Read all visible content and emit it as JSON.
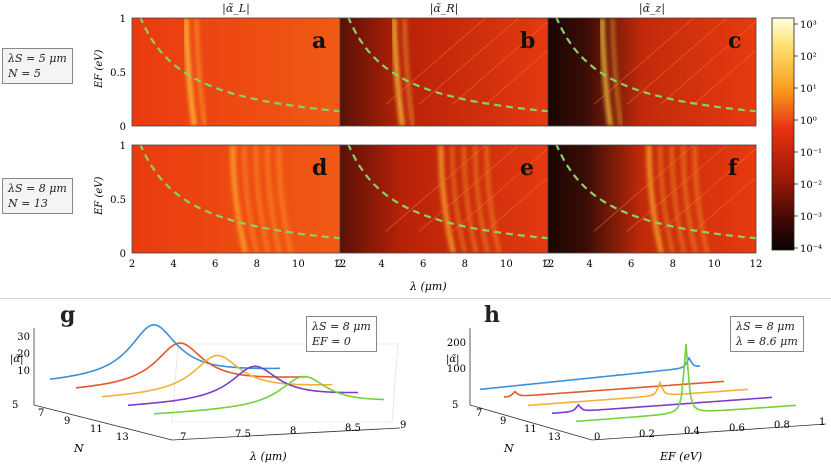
{
  "headers": [
    "|α̃_L|",
    "|α̃_R|",
    "|α̃_z|"
  ],
  "panel_letters": [
    "a",
    "b",
    "c",
    "d",
    "e",
    "f",
    "g",
    "h"
  ],
  "row_params": [
    {
      "line1": "λS = 5 μm",
      "line2": "N = 5"
    },
    {
      "line1": "λS = 8 μm",
      "line2": "N = 13"
    }
  ],
  "g_params": {
    "line1": "λS = 8 μm",
    "line2": "EF = 0"
  },
  "h_params": {
    "line1": "λS = 8 μm",
    "line2": "λ = 8.6 μm"
  },
  "colors": {
    "dashed": "#8ad06a",
    "series": [
      "#3d8fd9",
      "#e4572e",
      "#f2b134",
      "#7b3cc9",
      "#74d13a"
    ]
  },
  "chart_data": [
    {
      "type": "heatmap",
      "title": "",
      "xlabel": "λ (μm)",
      "ylabel": "EF (eV)",
      "x_ticks": [
        "2",
        "4",
        "6",
        "8",
        "10",
        "12"
      ],
      "y_ticks": [
        "0",
        "0.5",
        "1"
      ],
      "xlim": [
        2,
        12
      ],
      "ylim": [
        0,
        1
      ],
      "panels": [
        {
          "letter": "a",
          "quantity": "|α̃_L|",
          "lambda_S": 5,
          "N": 5
        },
        {
          "letter": "b",
          "quantity": "|α̃_R|",
          "lambda_S": 5,
          "N": 5
        },
        {
          "letter": "c",
          "quantity": "|α̃_z|",
          "lambda_S": 5,
          "N": 5
        },
        {
          "letter": "d",
          "quantity": "|α̃_L|",
          "lambda_S": 8,
          "N": 13
        },
        {
          "letter": "e",
          "quantity": "|α̃_R|",
          "lambda_S": 8,
          "N": 13
        },
        {
          "letter": "f",
          "quantity": "|α̃_z|",
          "lambda_S": 8,
          "N": 13
        }
      ],
      "colorbar": {
        "scale": "log",
        "ticks": [
          "10³",
          "10²",
          "10¹",
          "10⁰",
          "10⁻¹",
          "10⁻²",
          "10⁻³",
          "10⁻⁴"
        ]
      }
    },
    {
      "type": "line",
      "title": "",
      "xlabel": "λ (μm)",
      "ylabel": "|α̃|",
      "zlabel": "N",
      "x_ticks": [
        "7",
        "7.5",
        "8",
        "8.5",
        "9"
      ],
      "y_ticks": [
        "10",
        "20",
        "30"
      ],
      "n_ticks": [
        "5",
        "7",
        "9",
        "11",
        "13"
      ],
      "xlim": [
        7,
        9
      ],
      "series": [
        {
          "N": 5,
          "peak_lambda": 7.9,
          "peak_value": 31
        },
        {
          "N": 7,
          "peak_lambda": 7.9,
          "peak_value": 25
        },
        {
          "N": 9,
          "peak_lambda": 8.0,
          "peak_value": 22
        },
        {
          "N": 11,
          "peak_lambda": 8.1,
          "peak_value": 20
        },
        {
          "N": 13,
          "peak_lambda": 8.3,
          "peak_value": 18
        }
      ]
    },
    {
      "type": "line",
      "title": "",
      "xlabel": "EF (eV)",
      "ylabel": "|α̃|",
      "zlabel": "N",
      "x_ticks": [
        "0",
        "0.2",
        "0.4",
        "0.6",
        "0.8",
        "1"
      ],
      "y_ticks": [
        "100",
        "200"
      ],
      "n_ticks": [
        "5",
        "7",
        "9",
        "11",
        "13"
      ],
      "xlim": [
        0,
        1
      ],
      "series": [
        {
          "N": 5,
          "peak_EF": 0.95,
          "peak_value": 30
        },
        {
          "N": 7,
          "peak_EF": 0.05,
          "peak_value": 15
        },
        {
          "N": 9,
          "peak_EF": 0.6,
          "peak_value": 40
        },
        {
          "N": 11,
          "peak_EF": 0.12,
          "peak_value": 20
        },
        {
          "N": 13,
          "peak_EF": 0.5,
          "peak_value": 210
        }
      ]
    }
  ]
}
